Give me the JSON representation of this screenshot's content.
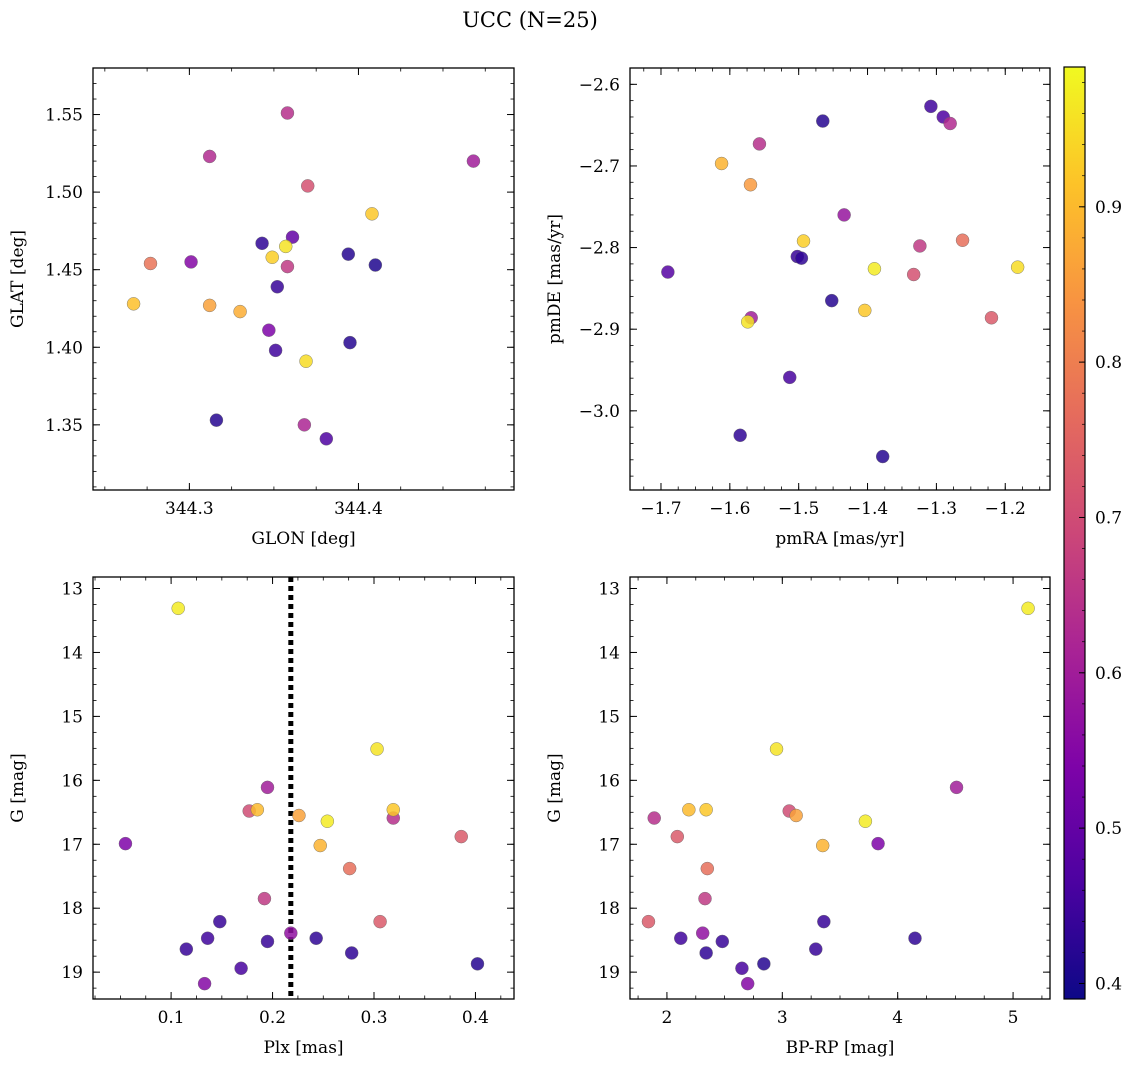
{
  "figure": {
    "title": "UCC (N=25)"
  },
  "colorbar": {
    "range": [
      0.39,
      0.99
    ],
    "ticks": [
      0.4,
      0.5,
      0.6,
      0.7,
      0.8,
      0.9
    ],
    "tick_labels": [
      "0.4",
      "0.5",
      "0.6",
      "0.7",
      "0.8",
      "0.9"
    ],
    "colormap": "plasma"
  },
  "chart_data": [
    {
      "type": "scatter",
      "name": "sky",
      "xlabel": "GLON [deg]",
      "ylabel": "GLAT [deg]",
      "xlim": [
        344.243,
        344.492
      ],
      "ylim": [
        1.308,
        1.58
      ],
      "xticks": [
        344.3,
        344.4
      ],
      "xtick_labels": [
        "344.3",
        "344.4"
      ],
      "yticks": [
        1.35,
        1.4,
        1.45,
        1.5,
        1.55
      ],
      "ytick_labels": [
        "1.35",
        "1.40",
        "1.45",
        "1.50",
        "1.55"
      ],
      "points": [
        {
          "x": 344.358,
          "y": 1.551,
          "c": 0.64
        },
        {
          "x": 344.312,
          "y": 1.523,
          "c": 0.63
        },
        {
          "x": 344.468,
          "y": 1.52,
          "c": 0.6
        },
        {
          "x": 344.37,
          "y": 1.504,
          "c": 0.71
        },
        {
          "x": 344.408,
          "y": 1.486,
          "c": 0.92
        },
        {
          "x": 344.361,
          "y": 1.471,
          "c": 0.5
        },
        {
          "x": 344.343,
          "y": 1.467,
          "c": 0.43
        },
        {
          "x": 344.357,
          "y": 1.465,
          "c": 0.96
        },
        {
          "x": 344.394,
          "y": 1.46,
          "c": 0.42
        },
        {
          "x": 344.349,
          "y": 1.458,
          "c": 0.93
        },
        {
          "x": 344.277,
          "y": 1.454,
          "c": 0.78
        },
        {
          "x": 344.301,
          "y": 1.455,
          "c": 0.55
        },
        {
          "x": 344.358,
          "y": 1.452,
          "c": 0.66
        },
        {
          "x": 344.41,
          "y": 1.453,
          "c": 0.41
        },
        {
          "x": 344.352,
          "y": 1.439,
          "c": 0.44
        },
        {
          "x": 344.267,
          "y": 1.428,
          "c": 0.91
        },
        {
          "x": 344.312,
          "y": 1.427,
          "c": 0.86
        },
        {
          "x": 344.33,
          "y": 1.423,
          "c": 0.88
        },
        {
          "x": 344.347,
          "y": 1.411,
          "c": 0.54
        },
        {
          "x": 344.395,
          "y": 1.403,
          "c": 0.42
        },
        {
          "x": 344.351,
          "y": 1.398,
          "c": 0.45
        },
        {
          "x": 344.369,
          "y": 1.391,
          "c": 0.95
        },
        {
          "x": 344.316,
          "y": 1.353,
          "c": 0.42
        },
        {
          "x": 344.368,
          "y": 1.35,
          "c": 0.62
        },
        {
          "x": 344.381,
          "y": 1.341,
          "c": 0.47
        }
      ]
    },
    {
      "type": "scatter",
      "name": "proper-motion",
      "xlabel": "pmRA [mas/yr]",
      "ylabel": "pmDE [mas/yr]",
      "xlim": [
        -1.745,
        -1.135
      ],
      "ylim": [
        -3.097,
        -2.58
      ],
      "xticks": [
        -1.7,
        -1.6,
        -1.5,
        -1.4,
        -1.3,
        -1.2
      ],
      "xtick_labels": [
        "−1.7",
        "−1.6",
        "−1.5",
        "−1.4",
        "−1.3",
        "−1.2"
      ],
      "yticks": [
        -3.0,
        -2.9,
        -2.8,
        -2.7,
        -2.6
      ],
      "ytick_labels": [
        "−3.0",
        "−2.9",
        "−2.8",
        "−2.7",
        "−2.6"
      ],
      "points": [
        {
          "x": -1.308,
          "y": -2.627,
          "c": 0.45
        },
        {
          "x": -1.29,
          "y": -2.64,
          "c": 0.47
        },
        {
          "x": -1.28,
          "y": -2.648,
          "c": 0.63
        },
        {
          "x": -1.465,
          "y": -2.645,
          "c": 0.42
        },
        {
          "x": -1.557,
          "y": -2.673,
          "c": 0.64
        },
        {
          "x": -1.612,
          "y": -2.697,
          "c": 0.89
        },
        {
          "x": -1.57,
          "y": -2.723,
          "c": 0.85
        },
        {
          "x": -1.434,
          "y": -2.76,
          "c": 0.58
        },
        {
          "x": -1.493,
          "y": -2.792,
          "c": 0.93
        },
        {
          "x": -1.262,
          "y": -2.791,
          "c": 0.77
        },
        {
          "x": -1.324,
          "y": -2.798,
          "c": 0.66
        },
        {
          "x": -1.502,
          "y": -2.811,
          "c": 0.44
        },
        {
          "x": -1.496,
          "y": -2.813,
          "c": 0.43
        },
        {
          "x": -1.39,
          "y": -2.826,
          "c": 0.97
        },
        {
          "x": -1.182,
          "y": -2.824,
          "c": 0.95
        },
        {
          "x": -1.333,
          "y": -2.833,
          "c": 0.71
        },
        {
          "x": -1.69,
          "y": -2.83,
          "c": 0.48
        },
        {
          "x": -1.452,
          "y": -2.865,
          "c": 0.42
        },
        {
          "x": -1.404,
          "y": -2.877,
          "c": 0.92
        },
        {
          "x": -1.22,
          "y": -2.886,
          "c": 0.73
        },
        {
          "x": -1.569,
          "y": -2.886,
          "c": 0.6
        },
        {
          "x": -1.574,
          "y": -2.891,
          "c": 0.96
        },
        {
          "x": -1.513,
          "y": -2.959,
          "c": 0.46
        },
        {
          "x": -1.585,
          "y": -3.03,
          "c": 0.43
        },
        {
          "x": -1.378,
          "y": -3.056,
          "c": 0.42
        }
      ]
    },
    {
      "type": "scatter",
      "name": "plx-vs-mag",
      "xlabel": "Plx [mas]",
      "ylabel": "G [mag]",
      "xlim": [
        0.023,
        0.438
      ],
      "ylim": [
        19.42,
        12.82
      ],
      "y_inverted": true,
      "xticks": [
        0.1,
        0.2,
        0.3,
        0.4
      ],
      "xtick_labels": [
        "0.1",
        "0.2",
        "0.3",
        "0.4"
      ],
      "yticks": [
        13,
        14,
        15,
        16,
        17,
        18,
        19
      ],
      "ytick_labels": [
        "13",
        "14",
        "15",
        "16",
        "17",
        "18",
        "19"
      ],
      "vline": {
        "x": 0.218,
        "style": "dotted"
      },
      "points": [
        {
          "x": 0.107,
          "y": 13.31,
          "c": 0.97
        },
        {
          "x": 0.303,
          "y": 15.51,
          "c": 0.96
        },
        {
          "x": 0.195,
          "y": 16.11,
          "c": 0.6
        },
        {
          "x": 0.177,
          "y": 16.48,
          "c": 0.7
        },
        {
          "x": 0.185,
          "y": 16.46,
          "c": 0.9
        },
        {
          "x": 0.226,
          "y": 16.55,
          "c": 0.86
        },
        {
          "x": 0.254,
          "y": 16.64,
          "c": 0.97
        },
        {
          "x": 0.319,
          "y": 16.59,
          "c": 0.64
        },
        {
          "x": 0.319,
          "y": 16.46,
          "c": 0.92
        },
        {
          "x": 0.055,
          "y": 16.99,
          "c": 0.54
        },
        {
          "x": 0.247,
          "y": 17.02,
          "c": 0.89
        },
        {
          "x": 0.386,
          "y": 16.88,
          "c": 0.73
        },
        {
          "x": 0.276,
          "y": 17.38,
          "c": 0.77
        },
        {
          "x": 0.192,
          "y": 17.85,
          "c": 0.66
        },
        {
          "x": 0.148,
          "y": 18.21,
          "c": 0.44
        },
        {
          "x": 0.306,
          "y": 18.21,
          "c": 0.73
        },
        {
          "x": 0.136,
          "y": 18.47,
          "c": 0.45
        },
        {
          "x": 0.218,
          "y": 18.39,
          "c": 0.57
        },
        {
          "x": 0.243,
          "y": 18.47,
          "c": 0.43
        },
        {
          "x": 0.195,
          "y": 18.52,
          "c": 0.44
        },
        {
          "x": 0.115,
          "y": 18.64,
          "c": 0.44
        },
        {
          "x": 0.278,
          "y": 18.7,
          "c": 0.43
        },
        {
          "x": 0.169,
          "y": 18.94,
          "c": 0.46
        },
        {
          "x": 0.402,
          "y": 18.87,
          "c": 0.42
        },
        {
          "x": 0.133,
          "y": 19.18,
          "c": 0.55
        }
      ]
    },
    {
      "type": "scatter",
      "name": "cmd",
      "xlabel": "BP-RP [mag]",
      "ylabel": "G [mag]",
      "xlim": [
        1.68,
        5.32
      ],
      "ylim": [
        19.42,
        12.82
      ],
      "y_inverted": true,
      "xticks": [
        2,
        3,
        4,
        5
      ],
      "xtick_labels": [
        "2",
        "3",
        "4",
        "5"
      ],
      "yticks": [
        13,
        14,
        15,
        16,
        17,
        18,
        19
      ],
      "ytick_labels": [
        "13",
        "14",
        "15",
        "16",
        "17",
        "18",
        "19"
      ],
      "points": [
        {
          "x": 5.13,
          "y": 13.31,
          "c": 0.97
        },
        {
          "x": 2.95,
          "y": 15.51,
          "c": 0.96
        },
        {
          "x": 4.51,
          "y": 16.11,
          "c": 0.6
        },
        {
          "x": 1.89,
          "y": 16.59,
          "c": 0.64
        },
        {
          "x": 2.19,
          "y": 16.46,
          "c": 0.9
        },
        {
          "x": 2.34,
          "y": 16.46,
          "c": 0.92
        },
        {
          "x": 3.06,
          "y": 16.48,
          "c": 0.7
        },
        {
          "x": 3.12,
          "y": 16.55,
          "c": 0.86
        },
        {
          "x": 3.72,
          "y": 16.64,
          "c": 0.97
        },
        {
          "x": 2.09,
          "y": 16.88,
          "c": 0.73
        },
        {
          "x": 3.35,
          "y": 17.02,
          "c": 0.89
        },
        {
          "x": 3.83,
          "y": 16.99,
          "c": 0.54
        },
        {
          "x": 2.35,
          "y": 17.38,
          "c": 0.77
        },
        {
          "x": 2.33,
          "y": 17.85,
          "c": 0.66
        },
        {
          "x": 1.84,
          "y": 18.21,
          "c": 0.73
        },
        {
          "x": 3.36,
          "y": 18.21,
          "c": 0.44
        },
        {
          "x": 2.31,
          "y": 18.39,
          "c": 0.57
        },
        {
          "x": 2.12,
          "y": 18.47,
          "c": 0.45
        },
        {
          "x": 2.48,
          "y": 18.52,
          "c": 0.44
        },
        {
          "x": 4.15,
          "y": 18.47,
          "c": 0.43
        },
        {
          "x": 2.34,
          "y": 18.7,
          "c": 0.43
        },
        {
          "x": 3.29,
          "y": 18.64,
          "c": 0.44
        },
        {
          "x": 2.65,
          "y": 18.94,
          "c": 0.46
        },
        {
          "x": 2.84,
          "y": 18.87,
          "c": 0.42
        },
        {
          "x": 2.7,
          "y": 19.18,
          "c": 0.55
        }
      ]
    }
  ]
}
